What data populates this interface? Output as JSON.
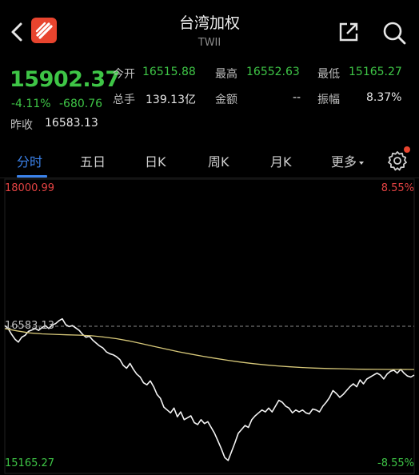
{
  "header": {
    "title": "台湾加权",
    "subtitle": "TWII",
    "icons": {
      "back": "chevron-left-icon",
      "logo": "app-logo",
      "share": "share-icon",
      "search": "search-icon"
    }
  },
  "quote": {
    "price": "15902.37",
    "change_percent": "-4.11%",
    "change": "-680.76",
    "prev_close_label": "昨收",
    "prev_close": "16583.13",
    "stats": [
      {
        "label": "今开",
        "value": "16515.88",
        "color": "green"
      },
      {
        "label": "最高",
        "value": "16552.63",
        "color": "green"
      },
      {
        "label": "最低",
        "value": "15165.27",
        "color": "green"
      },
      {
        "label": "总手",
        "value": "139.13亿",
        "color": "white"
      },
      {
        "label": "金额",
        "value": "--",
        "color": "white"
      },
      {
        "label": "振幅",
        "value": "8.37%",
        "color": "white"
      }
    ]
  },
  "tabs": [
    {
      "label": "分时",
      "active": true
    },
    {
      "label": "五日",
      "active": false
    },
    {
      "label": "日K",
      "active": false
    },
    {
      "label": "周K",
      "active": false
    },
    {
      "label": "月K",
      "active": false
    },
    {
      "label": "更多",
      "active": false
    }
  ],
  "settings_icon": "gear-icon",
  "chart_data": {
    "type": "line",
    "y_high_label": "18000.99",
    "y_mid_label": "16583.13",
    "y_low_label": "15165.27",
    "pct_high_label": "8.55%",
    "pct_low_label": "-8.55%",
    "ylim": [
      15165.27,
      18000.99
    ],
    "reference": 16583.13,
    "colors": {
      "price": "#f2f2f2",
      "average": "#d8c97a",
      "reference": "#8a8a8a",
      "up": "#e54343",
      "down": "#3ec546"
    },
    "series": [
      {
        "values": [
          16590,
          16560,
          16500,
          16450,
          16420,
          16470,
          16490,
          16530,
          16545,
          16560,
          16540,
          16570,
          16590,
          16560,
          16595,
          16610,
          16640,
          16660,
          16600,
          16580,
          16590,
          16565,
          16540,
          16500,
          16470,
          16480,
          16440,
          16410,
          16380,
          16360,
          16320,
          16300,
          16290,
          16270,
          16240,
          16180,
          16150,
          16200,
          16140,
          16090,
          16060,
          16000,
          15980,
          16020,
          15960,
          15880,
          15840,
          15750,
          15720,
          15690,
          15740,
          15650,
          15700,
          15620,
          15640,
          15660,
          15590,
          15570,
          15620,
          15580,
          15600,
          15540,
          15480,
          15400,
          15320,
          15230,
          15200,
          15290,
          15380,
          15480,
          15520,
          15560,
          15540,
          15620,
          15660,
          15690,
          15720,
          15700,
          15740,
          15700,
          15760,
          15820,
          15800,
          15760,
          15740,
          15690,
          15720,
          15700,
          15720,
          15690,
          15680,
          15730,
          15720,
          15700,
          15760,
          15800,
          15850,
          15920,
          15890,
          15850,
          15880,
          15920,
          15960,
          15990,
          15960,
          16030,
          15990,
          16040,
          16060,
          16080,
          16100,
          16080,
          16040,
          16090,
          16120,
          16130,
          16100,
          16140,
          16100,
          16070,
          16060,
          16080
        ]
      },
      {
        "values": [
          16560,
          16535,
          16515,
          16505,
          16500,
          16495,
          16492,
          16485,
          16472,
          16455,
          16432,
          16405,
          16376,
          16348,
          16320,
          16296,
          16273,
          16252,
          16232,
          16214,
          16198,
          16185,
          16174,
          16165,
          16158,
          16152,
          16148,
          16145,
          16142,
          16140,
          16139,
          16138,
          16138,
          16137
        ]
      }
    ]
  }
}
